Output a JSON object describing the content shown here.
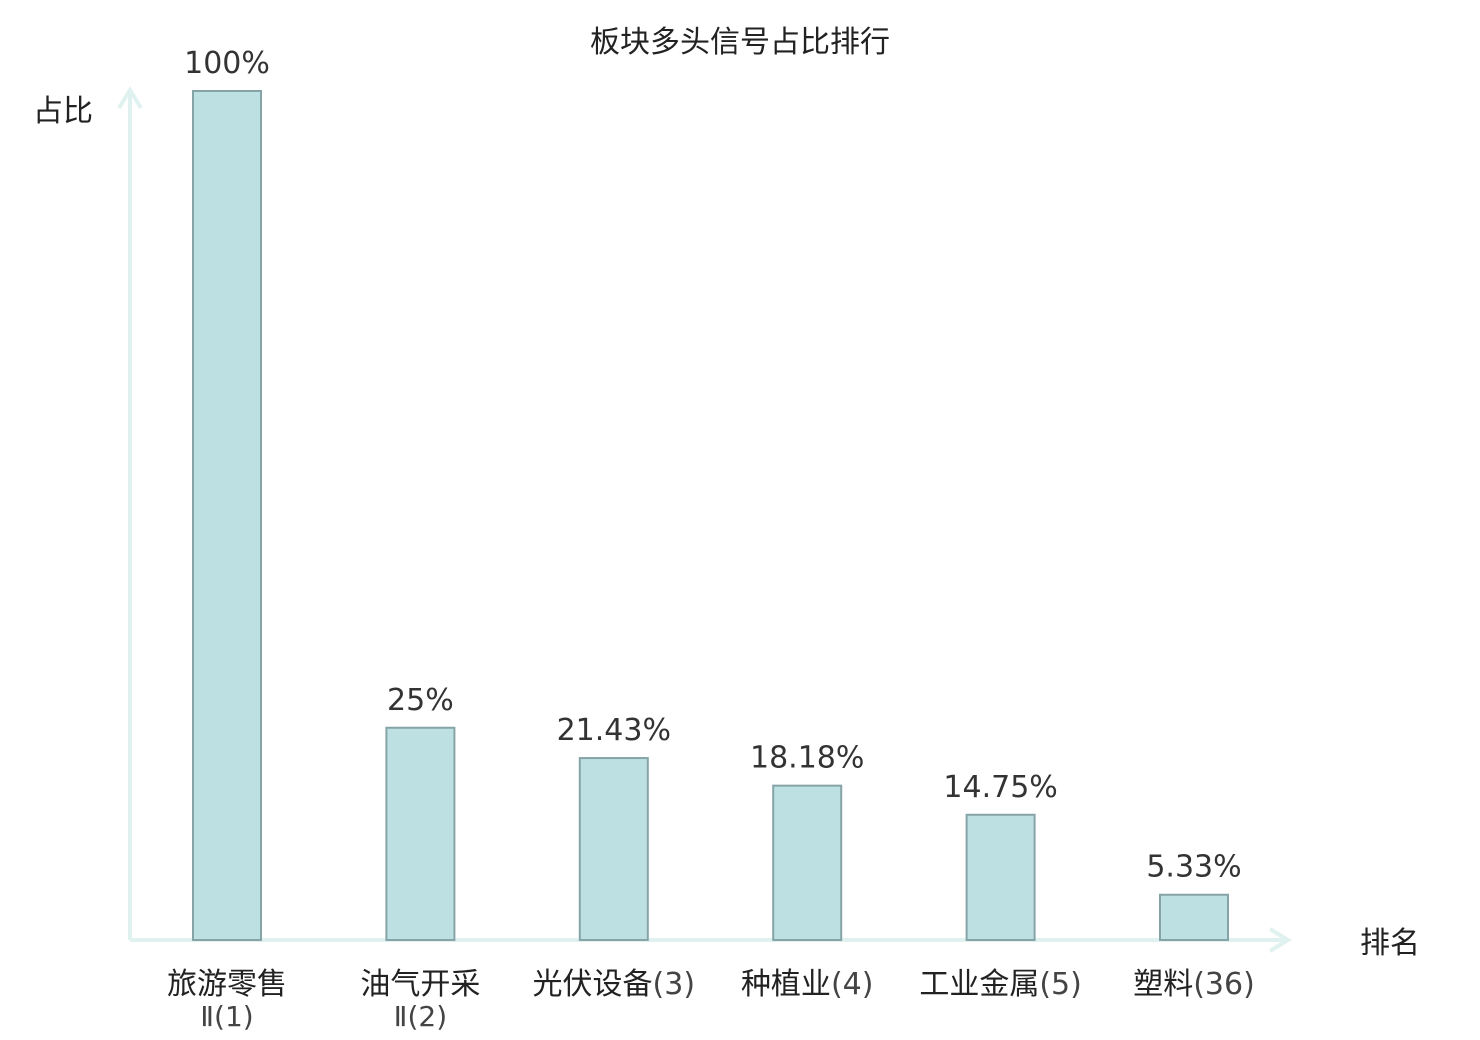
{
  "chart_data": {
    "type": "bar",
    "title": "板块多头信号占比排行",
    "ylabel": "占比",
    "xlabel": "排名",
    "ylim": [
      0,
      100
    ],
    "grid": false,
    "categories": [
      {
        "name": "旅游零售",
        "suffix": "Ⅱ",
        "rank": "(1)",
        "highlight": false
      },
      {
        "name": "油气开采",
        "suffix": "Ⅱ",
        "rank": "(2)",
        "highlight": false
      },
      {
        "name": "光伏设备",
        "suffix": "",
        "rank": "(3)",
        "highlight": false
      },
      {
        "name": "种植业",
        "suffix": "",
        "rank": "(4)",
        "highlight": false
      },
      {
        "name": "工业金属",
        "suffix": "",
        "rank": "(5)",
        "highlight": false
      },
      {
        "name": "塑料",
        "suffix": "",
        "rank": "(36)",
        "highlight": true
      }
    ],
    "values": [
      100,
      25,
      21.43,
      18.18,
      14.75,
      5.33
    ],
    "value_labels": [
      "100%",
      "25%",
      "21.43%",
      "18.18%",
      "14.75%",
      "5.33%"
    ],
    "colors": {
      "bar_fill": "#bde0e3",
      "bar_stroke": "#86a4a8",
      "axis": "#e0f2ef",
      "highlight": "#e0161b"
    }
  }
}
